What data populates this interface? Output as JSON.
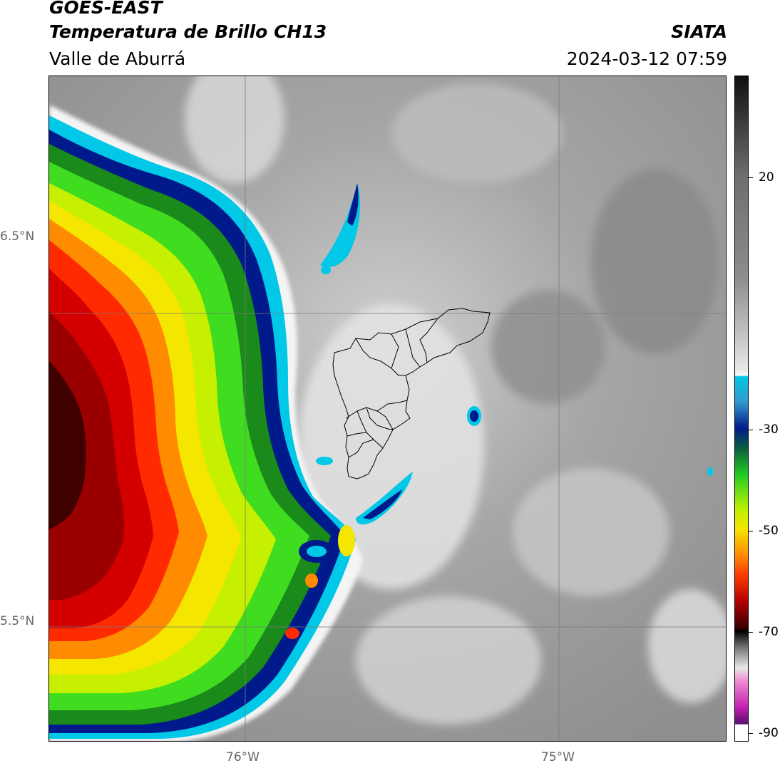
{
  "header": {
    "satellite": "GOES-EAST",
    "product": "Temperatura de Brillo CH13",
    "region": "Valle de Aburrá",
    "organization": "SIATA",
    "datetime": "2024-03-12 07:59"
  },
  "map": {
    "lat_labels": [
      "6.5°N",
      "5.5°N"
    ],
    "lon_labels": [
      "76°W",
      "75°W"
    ],
    "boundary": "Valle de Aburrá municipalities"
  },
  "colorbar": {
    "tick_labels": [
      "20",
      "-30",
      "-50",
      "-70",
      "-90"
    ],
    "colors": {
      "cold_red": "#b40000",
      "orange": "#ff8c00",
      "yellow": "#f5e600",
      "green": "#22cc22",
      "dark_blue": "#001a8c",
      "cyan": "#00c8e6",
      "light_gray": "#e6e6e6",
      "dark_gray": "#555555",
      "magenta": "#c21fb0"
    }
  }
}
